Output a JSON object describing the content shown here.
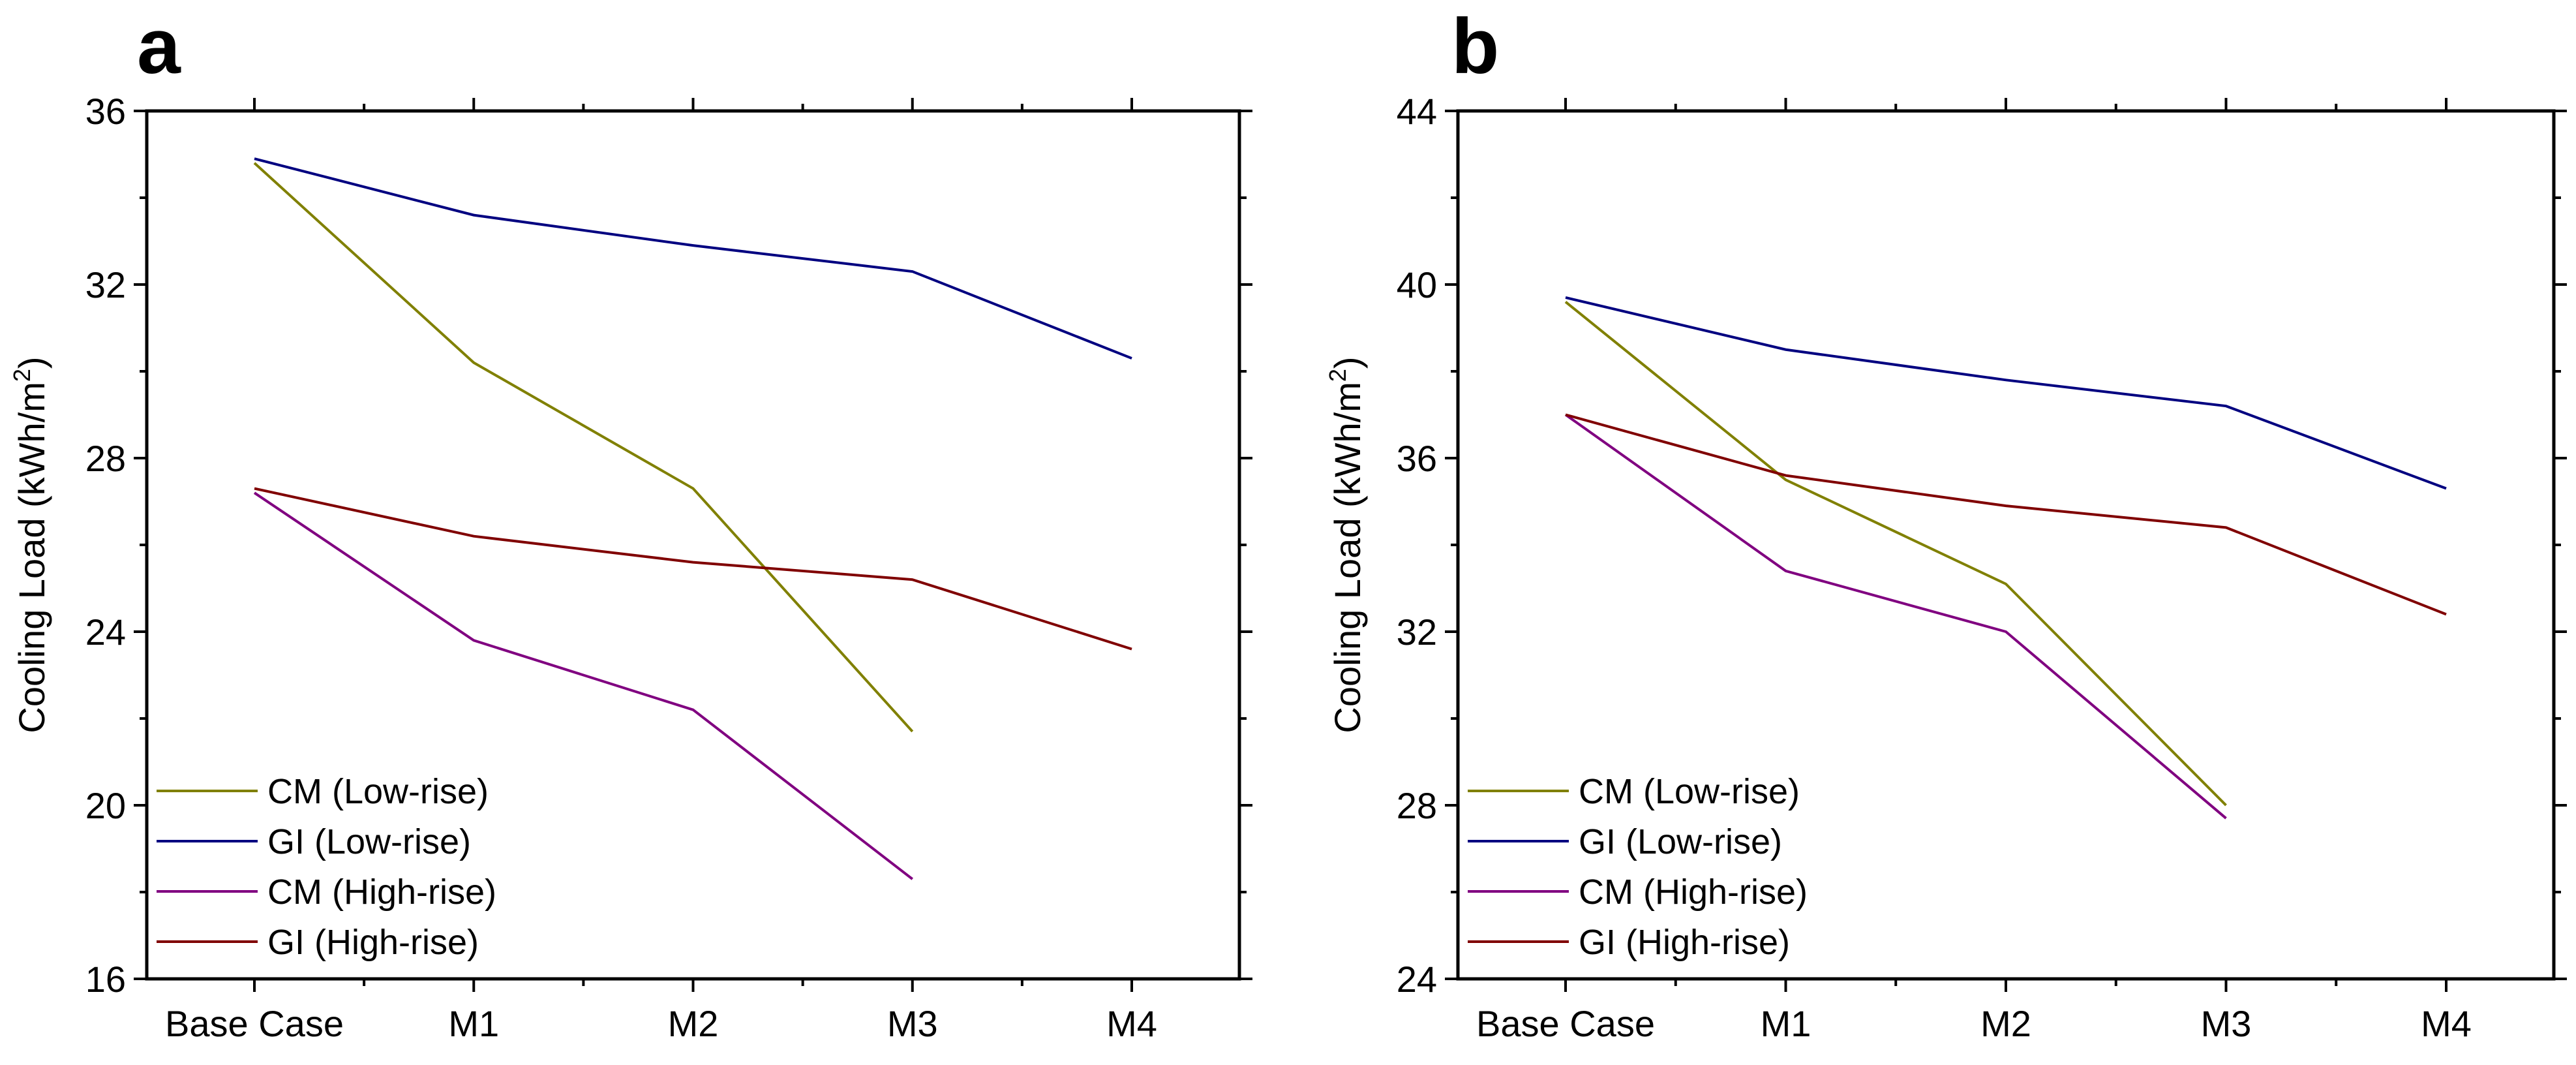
{
  "chart_data": [
    {
      "type": "line",
      "panel_label": "a",
      "title": "",
      "xlabel": "",
      "ylabel": "Cooling Load (kWh/m",
      "ylabel_sup": "2",
      "ylabel_close": ")",
      "categories": [
        "Base Case",
        "M1",
        "M2",
        "M3",
        "M4"
      ],
      "ylim": [
        16,
        36
      ],
      "yticks": [
        "16",
        "20",
        "24",
        "28",
        "32",
        "36"
      ],
      "legend_position": "bottom-left",
      "series": [
        {
          "name": "CM (Low-rise)",
          "color": "#808000",
          "values": [
            34.8,
            30.2,
            27.3,
            21.7,
            null
          ]
        },
        {
          "name": "GI (Low-rise)",
          "color": "#000080",
          "values": [
            34.9,
            33.6,
            32.9,
            32.3,
            30.3
          ]
        },
        {
          "name": "CM (High-rise)",
          "color": "#800080",
          "values": [
            27.2,
            23.8,
            22.2,
            18.3,
            null
          ]
        },
        {
          "name": "GI (High-rise)",
          "color": "#800000",
          "values": [
            27.3,
            26.2,
            25.6,
            25.2,
            23.6
          ]
        }
      ]
    },
    {
      "type": "line",
      "panel_label": "b",
      "title": "",
      "xlabel": "",
      "ylabel": "Cooling Load (kWh/m",
      "ylabel_sup": "2",
      "ylabel_close": ")",
      "categories": [
        "Base Case",
        "M1",
        "M2",
        "M3",
        "M4"
      ],
      "ylim": [
        24,
        44
      ],
      "yticks": [
        "24",
        "28",
        "32",
        "36",
        "40",
        "44"
      ],
      "legend_position": "bottom-left",
      "series": [
        {
          "name": "CM (Low-rise)",
          "color": "#808000",
          "values": [
            39.6,
            35.5,
            33.1,
            28.0,
            null
          ]
        },
        {
          "name": "GI (Low-rise)",
          "color": "#000080",
          "values": [
            39.7,
            38.5,
            37.8,
            37.2,
            35.3
          ]
        },
        {
          "name": "CM (High-rise)",
          "color": "#800080",
          "values": [
            37.0,
            33.4,
            32.0,
            27.7,
            null
          ]
        },
        {
          "name": "GI (High-rise)",
          "color": "#800000",
          "values": [
            37.0,
            35.6,
            34.9,
            34.4,
            32.4
          ]
        }
      ]
    }
  ]
}
